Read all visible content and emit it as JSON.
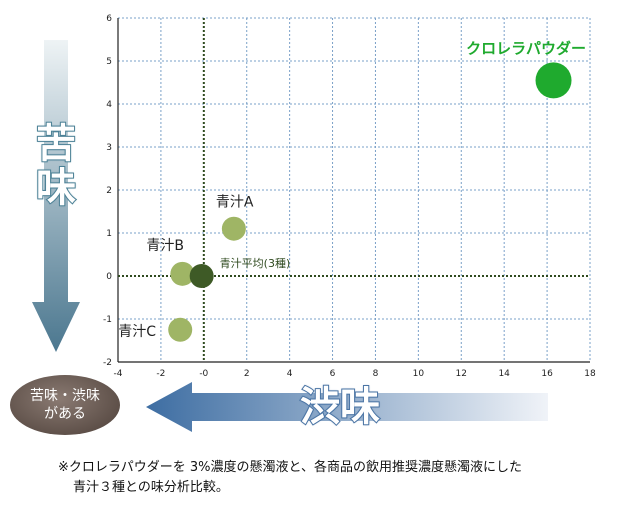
{
  "chart_data": {
    "type": "scatter",
    "x_ticks": [
      "-4",
      "-2",
      "-0",
      "2",
      "4",
      "6",
      "8",
      "10",
      "12",
      "14",
      "16",
      "18"
    ],
    "y_ticks": [
      "6",
      "5",
      "4",
      "3",
      "2",
      "1",
      "0",
      "-1",
      "-2"
    ],
    "xlim": [
      -4,
      18
    ],
    "ylim": [
      -2,
      6
    ],
    "grid": true,
    "points": [
      {
        "label": "クロレラパウダー",
        "x": 16.3,
        "y": 4.55,
        "color": "#1faa2e",
        "size": "large"
      },
      {
        "label": "青汁A",
        "x": 1.4,
        "y": 1.1,
        "color": "#9fb565",
        "size": "medium"
      },
      {
        "label": "青汁B",
        "x": -1.0,
        "y": 0.05,
        "color": "#9fb565",
        "size": "medium"
      },
      {
        "label": "青汁平均(3種)",
        "x": -0.1,
        "y": 0.0,
        "color": "#3e5a26",
        "size": "medium"
      },
      {
        "label": "青汁C",
        "x": -1.1,
        "y": -1.25,
        "color": "#9fb565",
        "size": "medium"
      }
    ]
  },
  "axis_bitter": {
    "char1": "苦",
    "char2": "味"
  },
  "axis_astringent": {
    "label": "渋味"
  },
  "badge": {
    "line1": "苦味・渋味",
    "line2": "がある"
  },
  "note": {
    "line1": "※クロレラパウダーを 3%濃度の懸濁液と、各商品の飲用推奨濃度懸濁液にした",
    "line2": "青汁３種との味分析比較。"
  },
  "colors": {
    "grid": "#7aa0c8",
    "zero_axis": "#2f4a1f",
    "bitter_arrow_top": "#e9eff2",
    "bitter_arrow_bottom": "#4c7790",
    "astr_arrow_left": "#3e6ea3",
    "astr_arrow_right": "#eef2f8"
  }
}
